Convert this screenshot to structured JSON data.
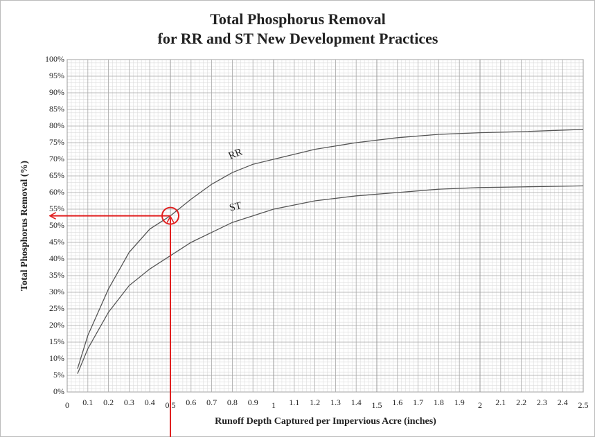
{
  "chart_data": {
    "type": "line",
    "title": "Total Phosphorus Removal",
    "subtitle": "for RR and ST New Development Practices",
    "x_label": "Runoff Depth Captured per Impervious Acre (inches)",
    "y_label": "Total Phosphorus Removal (%)",
    "x": [
      0.05,
      0.1,
      0.2,
      0.3,
      0.4,
      0.5,
      0.6,
      0.7,
      0.8,
      0.9,
      1.0,
      1.2,
      1.4,
      1.6,
      1.8,
      2.0,
      2.2,
      2.5
    ],
    "series": [
      {
        "name": "RR",
        "color": "#555555",
        "values": [
          7,
          17,
          31,
          42,
          49,
          53,
          58,
          62.5,
          66,
          68.5,
          70,
          73,
          75,
          76.5,
          77.5,
          78,
          78.3,
          79
        ]
      },
      {
        "name": "ST",
        "color": "#555555",
        "values": [
          5.5,
          13,
          24,
          32,
          37,
          41,
          45,
          48,
          51,
          53,
          55,
          57.5,
          59,
          60,
          61,
          61.5,
          61.7,
          62
        ]
      }
    ],
    "highlight": {
      "x": 0.5,
      "y": 53,
      "color": "#e02020"
    },
    "xlim": [
      0,
      2.5
    ],
    "xticks": [
      0,
      0.1,
      0.2,
      0.3,
      0.4,
      0.5,
      0.6,
      0.7,
      0.8,
      0.9,
      1,
      1.1,
      1.2,
      1.3,
      1.4,
      1.5,
      1.6,
      1.7,
      1.8,
      1.9,
      2,
      2.1,
      2.2,
      2.3,
      2.4,
      2.5
    ],
    "ylim": [
      0,
      100
    ],
    "yticks": [
      {
        "value": 0,
        "label": "0%"
      },
      {
        "value": 5,
        "label": "5%"
      },
      {
        "value": 10,
        "label": "10%"
      },
      {
        "value": 15,
        "label": "15%"
      },
      {
        "value": 20,
        "label": "20%"
      },
      {
        "value": 25,
        "label": "25%"
      },
      {
        "value": 30,
        "label": "30%"
      },
      {
        "value": 35,
        "label": "35%"
      },
      {
        "value": 40,
        "label": "40%"
      },
      {
        "value": 45,
        "label": "45%"
      },
      {
        "value": 50,
        "label": "50%"
      },
      {
        "value": 55,
        "label": "55%"
      },
      {
        "value": 60,
        "label": "60%"
      },
      {
        "value": 65,
        "label": "65%"
      },
      {
        "value": 70,
        "label": "70%"
      },
      {
        "value": 75,
        "label": "75%"
      },
      {
        "value": 80,
        "label": "80%"
      },
      {
        "value": 85,
        "label": "85%"
      },
      {
        "value": 90,
        "label": "90%"
      },
      {
        "value": 95,
        "label": "95%"
      },
      {
        "value": 100,
        "label": "100%"
      }
    ],
    "grid": true,
    "minor_grid": true
  }
}
